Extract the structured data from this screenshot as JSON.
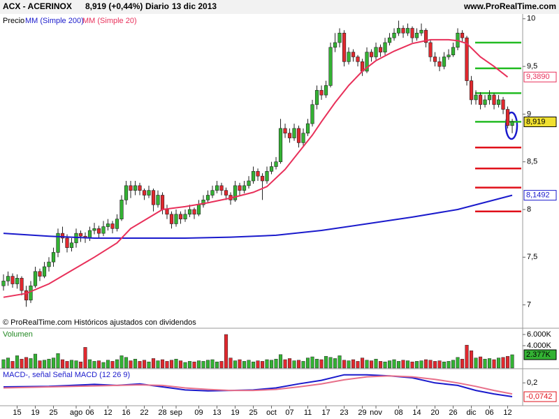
{
  "header": {
    "symbol": "ACX - ACERINOX",
    "quote": "8,919 (+0,44%)",
    "period": "Diario",
    "date": "13 dic 2013",
    "site": "www.ProRealTime.com",
    "copyright": "© ProRealTime.com  Históricos ajustados con dividendos"
  },
  "chart_data": [
    {
      "type": "candlestick",
      "legend_label": "Precio",
      "up_color": "#33b233",
      "down_color": "#e0282e",
      "xlim": [
        -0.77,
        114.3
      ],
      "ylim": [
        6.77,
        10.05
      ],
      "yticks": [
        {
          "value": 7,
          "label": "7"
        },
        {
          "value": 7.5,
          "label": "7,5"
        },
        {
          "value": 8,
          "label": "8"
        },
        {
          "value": 8.5,
          "label": "8,5"
        },
        {
          "value": 9,
          "label": "9"
        },
        {
          "value": 9.5,
          "label": "9,5"
        },
        {
          "value": 10,
          "label": "10"
        }
      ],
      "open": [
        7.2,
        7.25,
        7.3,
        7.22,
        7.28,
        7.15,
        7.05,
        7.2,
        7.35,
        7.3,
        7.4,
        7.45,
        7.55,
        7.75,
        7.7,
        7.6,
        7.65,
        7.75,
        7.72,
        7.7,
        7.78,
        7.8,
        7.75,
        7.82,
        7.85,
        7.8,
        7.9,
        8.1,
        8.25,
        8.2,
        8.25,
        8.2,
        8.15,
        8.2,
        8.05,
        8.15,
        8.0,
        7.95,
        7.85,
        7.95,
        7.9,
        7.95,
        8.0,
        7.95,
        8.05,
        8.1,
        8.15,
        8.2,
        8.25,
        8.2,
        8.15,
        8.1,
        8.25,
        8.2,
        8.25,
        8.3,
        8.4,
        8.35,
        8.3,
        8.4,
        8.45,
        8.5,
        8.85,
        8.8,
        8.75,
        8.85,
        8.7,
        8.8,
        8.9,
        9.1,
        9.25,
        9.2,
        9.3,
        9.7,
        9.75,
        9.85,
        9.55,
        9.65,
        9.6,
        9.55,
        9.45,
        9.65,
        9.6,
        9.7,
        9.65,
        9.75,
        9.8,
        9.85,
        9.9,
        9.85,
        9.9,
        9.8,
        9.85,
        9.88,
        9.75,
        9.6,
        9.55,
        9.5,
        9.6,
        9.62,
        9.7,
        9.85,
        9.8,
        9.35,
        9.15,
        9.2,
        9.1,
        9.15,
        9.2,
        9.1,
        9.15,
        9.05,
        8.88
      ],
      "high": [
        7.32,
        7.35,
        7.33,
        7.32,
        7.3,
        7.2,
        7.25,
        7.4,
        7.38,
        7.45,
        7.5,
        7.6,
        7.8,
        7.82,
        7.74,
        7.7,
        7.8,
        7.78,
        7.76,
        7.82,
        7.86,
        7.83,
        7.88,
        7.9,
        7.88,
        7.95,
        8.15,
        8.3,
        8.3,
        8.3,
        8.28,
        8.22,
        8.25,
        8.22,
        8.2,
        8.18,
        8.05,
        7.98,
        8.0,
        7.98,
        8.0,
        8.05,
        8.02,
        8.1,
        8.15,
        8.2,
        8.25,
        8.3,
        8.28,
        8.23,
        8.18,
        8.3,
        8.28,
        8.3,
        8.35,
        8.45,
        8.43,
        8.38,
        8.45,
        8.5,
        8.55,
        8.95,
        8.9,
        8.85,
        8.9,
        8.88,
        8.85,
        8.95,
        9.15,
        9.3,
        9.3,
        9.35,
        9.75,
        9.85,
        9.9,
        9.88,
        9.7,
        9.68,
        9.62,
        9.58,
        9.7,
        9.68,
        9.75,
        9.73,
        9.8,
        9.85,
        9.9,
        9.98,
        9.93,
        9.95,
        9.92,
        9.9,
        9.95,
        9.9,
        9.78,
        9.65,
        9.6,
        9.65,
        9.68,
        9.75,
        9.9,
        9.88,
        9.82,
        9.4,
        9.25,
        9.23,
        9.2,
        9.25,
        9.22,
        9.2,
        9.18,
        9.08,
        8.95
      ],
      "low": [
        7.15,
        7.2,
        7.18,
        7.17,
        7.1,
        6.98,
        7.02,
        7.18,
        7.25,
        7.28,
        7.35,
        7.4,
        7.5,
        7.65,
        7.55,
        7.56,
        7.6,
        7.66,
        7.65,
        7.67,
        7.74,
        7.7,
        7.72,
        7.78,
        7.75,
        7.77,
        7.88,
        8.05,
        8.12,
        8.15,
        8.15,
        8.1,
        8.12,
        7.98,
        8.02,
        7.95,
        7.9,
        7.8,
        7.82,
        7.85,
        7.87,
        7.92,
        7.9,
        7.93,
        8.02,
        8.07,
        8.12,
        8.17,
        8.15,
        8.1,
        8.05,
        8.08,
        8.15,
        8.17,
        8.22,
        8.27,
        8.3,
        8.1,
        8.27,
        8.37,
        8.42,
        8.48,
        8.75,
        8.7,
        8.72,
        8.65,
        8.67,
        8.77,
        8.87,
        9.05,
        9.15,
        9.17,
        9.28,
        9.65,
        9.7,
        9.5,
        9.52,
        9.55,
        9.5,
        9.4,
        9.43,
        9.55,
        9.57,
        9.6,
        9.62,
        9.72,
        9.77,
        9.82,
        9.8,
        9.82,
        9.75,
        9.77,
        9.82,
        9.7,
        9.55,
        9.5,
        9.45,
        9.47,
        9.57,
        9.6,
        9.67,
        9.75,
        9.3,
        9.1,
        9.1,
        9.05,
        9.07,
        9.1,
        9.05,
        9.07,
        9.0,
        8.85,
        8.8
      ],
      "close": [
        7.25,
        7.3,
        7.22,
        7.28,
        7.15,
        7.05,
        7.2,
        7.35,
        7.3,
        7.4,
        7.45,
        7.55,
        7.75,
        7.7,
        7.6,
        7.65,
        7.75,
        7.72,
        7.7,
        7.78,
        7.8,
        7.75,
        7.82,
        7.85,
        7.8,
        7.9,
        8.1,
        8.25,
        8.2,
        8.25,
        8.2,
        8.15,
        8.2,
        8.05,
        8.15,
        8.0,
        7.95,
        7.85,
        7.95,
        7.9,
        7.95,
        8.0,
        7.95,
        8.05,
        8.1,
        8.15,
        8.2,
        8.25,
        8.2,
        8.15,
        8.1,
        8.25,
        8.2,
        8.25,
        8.3,
        8.4,
        8.35,
        8.3,
        8.4,
        8.45,
        8.5,
        8.85,
        8.8,
        8.75,
        8.85,
        8.7,
        8.8,
        8.9,
        9.1,
        9.25,
        9.2,
        9.3,
        9.7,
        9.75,
        9.85,
        9.55,
        9.65,
        9.6,
        9.55,
        9.45,
        9.65,
        9.6,
        9.7,
        9.65,
        9.75,
        9.8,
        9.85,
        9.9,
        9.85,
        9.9,
        9.8,
        9.85,
        9.88,
        9.75,
        9.6,
        9.55,
        9.5,
        9.6,
        9.62,
        9.7,
        9.85,
        9.8,
        9.35,
        9.15,
        9.2,
        9.1,
        9.15,
        9.2,
        9.1,
        9.15,
        9.05,
        8.88,
        8.919
      ],
      "series": [
        {
          "name": "MM (Simple 200)",
          "color": "#1a1acc",
          "x": [
            0,
            10,
            20,
            30,
            40,
            50,
            60,
            70,
            80,
            90,
            100,
            112
          ],
          "values": [
            7.75,
            7.72,
            7.7,
            7.7,
            7.7,
            7.71,
            7.73,
            7.78,
            7.85,
            7.92,
            8.0,
            8.1492
          ]
        },
        {
          "name": "MM (Simple 20)",
          "color": "#e8305a",
          "x": [
            0,
            5,
            10,
            15,
            20,
            25,
            28,
            35,
            40,
            45,
            50,
            55,
            58,
            62,
            65,
            68,
            70,
            73,
            76,
            79,
            82,
            86,
            90,
            94,
            98,
            100,
            102,
            105,
            108,
            111
          ],
          "values": [
            7.08,
            7.12,
            7.22,
            7.36,
            7.5,
            7.65,
            7.8,
            8.0,
            8.03,
            8.07,
            8.12,
            8.18,
            8.24,
            8.42,
            8.6,
            8.78,
            8.92,
            9.12,
            9.3,
            9.45,
            9.56,
            9.66,
            9.74,
            9.78,
            9.78,
            9.77,
            9.74,
            9.6,
            9.5,
            9.389
          ]
        }
      ],
      "badges": [
        {
          "value": 9.389,
          "label": "9,3890",
          "color": "#e8305a",
          "fill": "#ffffff"
        },
        {
          "value": 8.919,
          "label": "8,919",
          "color": "#000000",
          "fill": "#f0e030"
        },
        {
          "value": 8.1492,
          "label": "8,1492",
          "color": "#1a1acc",
          "fill": "#ffffff"
        }
      ],
      "levels": [
        {
          "value": 9.75,
          "color": "#22bb22"
        },
        {
          "value": 9.48,
          "color": "#22bb22"
        },
        {
          "value": 9.22,
          "color": "#22bb22"
        },
        {
          "value": 8.92,
          "color": "#22bb22"
        },
        {
          "value": 8.65,
          "color": "#e0101a"
        },
        {
          "value": 8.43,
          "color": "#e0101a"
        },
        {
          "value": 8.23,
          "color": "#e0101a"
        },
        {
          "value": 7.98,
          "color": "#e0101a"
        }
      ]
    },
    {
      "type": "bar",
      "title": "Volumen",
      "xlim": [
        -0.77,
        114.3
      ],
      "ylim": [
        0,
        6750
      ],
      "yticks": [
        {
          "value": 4000,
          "label": "4.000K"
        },
        {
          "value": 6000,
          "label": "6.000K"
        }
      ],
      "values": [
        1500,
        1800,
        1200,
        2200,
        1600,
        1900,
        1700,
        2500,
        1300,
        1400,
        1600,
        1800,
        2600,
        1500,
        1200,
        1400,
        1300,
        1100,
        3700,
        1500,
        1200,
        1300,
        1000,
        1400,
        1200,
        1500,
        2200,
        1900,
        1300,
        1600,
        1200,
        1400,
        1100,
        1700,
        1300,
        1500,
        1200,
        1400,
        1600,
        1300,
        1000,
        1200,
        1100,
        1300,
        1200,
        1400,
        1500,
        1100,
        1200,
        6000,
        1800,
        1300,
        1500,
        1200,
        1400,
        1100,
        1300,
        1200,
        1500,
        1400,
        1600,
        2400,
        1500,
        1700,
        1300,
        1400,
        1200,
        1800,
        2000,
        1600,
        1500,
        2100,
        1900,
        1700,
        2200,
        1400,
        1300,
        1500,
        1200,
        1800,
        1400,
        1300,
        1600,
        1200,
        1100,
        1300,
        1500,
        1200,
        1400,
        1300,
        1100,
        1200,
        1300,
        1500,
        1400,
        1200,
        1300,
        1100,
        1200,
        1400,
        1900,
        1600,
        4100,
        3100,
        1800,
        2000,
        1600,
        1700,
        1500,
        1800,
        1900,
        2100,
        2377
      ],
      "badge": {
        "value": 2377,
        "label": "2.377K",
        "color": "#000000",
        "fill": "#33b233"
      }
    },
    {
      "type": "line",
      "title": "MACD-, señal Señal MACD (12 26 9)",
      "xlim": [
        -0.77,
        114.3
      ],
      "ylim": [
        -0.24,
        0.453
      ],
      "yticks": [
        {
          "value": 0.2,
          "label": "0,2"
        }
      ],
      "xticks": [
        {
          "value": 3,
          "label": "15"
        },
        {
          "value": 7,
          "label": "19"
        },
        {
          "value": 11,
          "label": "25"
        },
        {
          "value": 16,
          "label": "ago"
        },
        {
          "value": 19,
          "label": "06"
        },
        {
          "value": 23,
          "label": "12"
        },
        {
          "value": 27,
          "label": "16"
        },
        {
          "value": 31,
          "label": "22"
        },
        {
          "value": 35,
          "label": "28"
        },
        {
          "value": 38,
          "label": "sep"
        },
        {
          "value": 43,
          "label": "09"
        },
        {
          "value": 47,
          "label": "13"
        },
        {
          "value": 51,
          "label": "19"
        },
        {
          "value": 55,
          "label": "25"
        },
        {
          "value": 59,
          "label": "oct"
        },
        {
          "value": 63,
          "label": "07"
        },
        {
          "value": 67,
          "label": "11"
        },
        {
          "value": 71,
          "label": "17"
        },
        {
          "value": 75,
          "label": "23"
        },
        {
          "value": 79,
          "label": "29"
        },
        {
          "value": 82,
          "label": "nov"
        },
        {
          "value": 87,
          "label": "08"
        },
        {
          "value": 91,
          "label": "14"
        },
        {
          "value": 95,
          "label": "20"
        },
        {
          "value": 99,
          "label": "26"
        },
        {
          "value": 103,
          "label": "dic"
        },
        {
          "value": 107,
          "label": "06"
        },
        {
          "value": 111,
          "label": "12"
        }
      ],
      "series": [
        {
          "name": "MACD",
          "color": "#1a1acc",
          "x": [
            0,
            10,
            20,
            25,
            30,
            35,
            40,
            45,
            50,
            55,
            60,
            65,
            70,
            75,
            80,
            85,
            90,
            95,
            100,
            104,
            108,
            112
          ],
          "values": [
            0.12,
            0.13,
            0.17,
            0.15,
            0.18,
            0.12,
            0.06,
            0.04,
            0.05,
            0.06,
            0.1,
            0.18,
            0.25,
            0.36,
            0.36,
            0.34,
            0.3,
            0.2,
            0.15,
            0.05,
            -0.02,
            -0.0742
          ]
        },
        {
          "name": "Señal",
          "color": "#e8708a",
          "x": [
            0,
            10,
            20,
            25,
            30,
            35,
            40,
            45,
            50,
            55,
            60,
            65,
            70,
            75,
            80,
            85,
            90,
            95,
            100,
            104,
            108,
            112
          ],
          "values": [
            0.1,
            0.12,
            0.14,
            0.15,
            0.16,
            0.15,
            0.1,
            0.07,
            0.05,
            0.05,
            0.07,
            0.12,
            0.18,
            0.26,
            0.32,
            0.34,
            0.32,
            0.27,
            0.2,
            0.13,
            0.05,
            -0.02
          ]
        }
      ],
      "badge": {
        "value": -0.0742,
        "label": "-0,0742",
        "color": "#e0101a",
        "fill": "#ffffff"
      }
    }
  ]
}
